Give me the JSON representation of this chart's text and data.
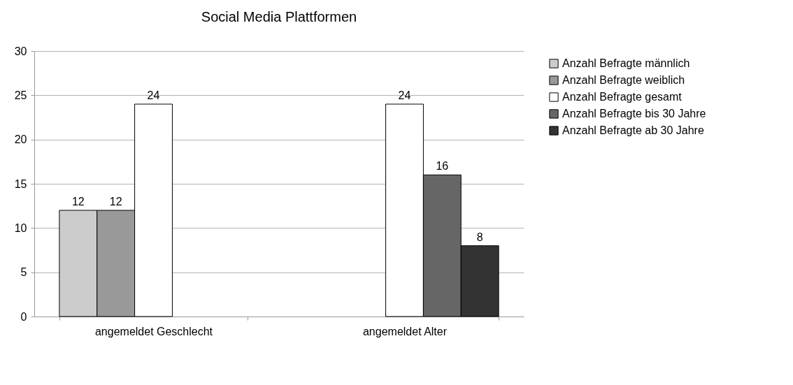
{
  "chart_data": {
    "type": "bar",
    "title": "Social Media Plattformen",
    "categories": [
      "angemeldet Geschlecht",
      "angemeldet Alter"
    ],
    "series": [
      {
        "name": "Anzahl Befragte männlich",
        "color": "#cccccc",
        "values": [
          12,
          null
        ]
      },
      {
        "name": "Anzahl Befragte weiblich",
        "color": "#999999",
        "values": [
          12,
          null
        ]
      },
      {
        "name": "Anzahl Befragte gesamt",
        "color": "#ffffff",
        "values": [
          24,
          24
        ]
      },
      {
        "name": "Anzahl Befragte bis 30 Jahre",
        "color": "#666666",
        "values": [
          null,
          16
        ]
      },
      {
        "name": "Anzahl Befragte ab 30 Jahre",
        "color": "#333333",
        "values": [
          null,
          8
        ]
      }
    ],
    "ylim": [
      0,
      30
    ],
    "yticks": [
      0,
      5,
      10,
      15,
      20,
      25,
      30
    ],
    "grid": "y",
    "legend": "right",
    "data_labels": true
  }
}
